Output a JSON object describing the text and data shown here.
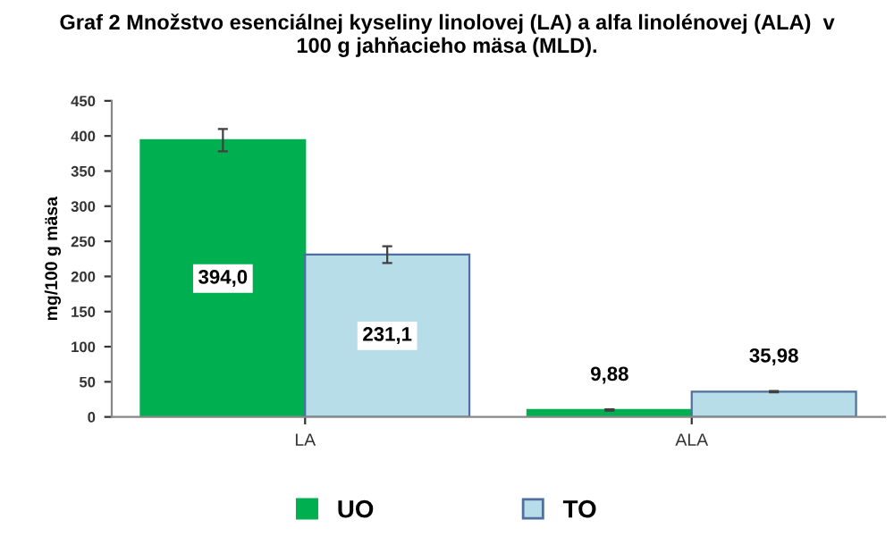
{
  "chart_data": {
    "type": "bar",
    "title": "Graf 2 Množstvo esenciálnej kyseliny linolovej (LA) a alfa linolénovej (ALA)  v\n100 g jahňacieho mäsa (MLD).",
    "ylabel": "mg/100 g mäsa",
    "categories": [
      "LA",
      "ALA"
    ],
    "series": [
      {
        "name": "UO",
        "color": "#00b050",
        "values": [
          394.0,
          9.88
        ],
        "value_labels": [
          "394,0",
          "9,88"
        ],
        "errors": [
          16,
          1
        ]
      },
      {
        "name": "TO",
        "color": "#b7dde8",
        "values": [
          231.1,
          35.98
        ],
        "value_labels": [
          "231,1",
          "35,98"
        ],
        "errors": [
          12,
          1
        ]
      }
    ],
    "ylim": [
      0,
      450
    ],
    "yticks": [
      0,
      50,
      100,
      150,
      200,
      250,
      300,
      350,
      400,
      450
    ],
    "grid": false,
    "legend": "bottom"
  }
}
